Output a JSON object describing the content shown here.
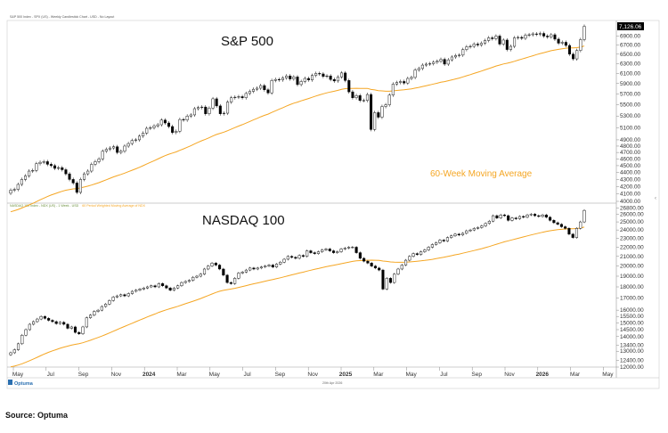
{
  "header": {
    "title": "S&P 500 Index - SPX (US) - Weekly Candlestick Chart - USD - No Layout"
  },
  "footer": {
    "date": "20th Apr 2026",
    "logo": "Optuma"
  },
  "source": "Source: Optuma",
  "colors": {
    "ma": "#f5a623",
    "candle_up_fill": "#ffffff",
    "candle_down_fill": "#000000",
    "candle_outline": "#000000",
    "axis": "#888888",
    "last_price_bg": "#000000",
    "last_price_text": "#ffffff"
  },
  "chart_data": [
    {
      "type": "candlestick",
      "title": "S&P 500",
      "header": "S&P 500 Index - SPX (US) - Weekly Candlestick Chart - USD - No Layout",
      "scale": "log",
      "ylim": [
        4000,
        7200
      ],
      "yticks": [
        4000,
        4100,
        4200,
        4300,
        4400,
        4500,
        4600,
        4700,
        4800,
        4900,
        5100,
        5300,
        5500,
        5700,
        5900,
        6100,
        6300,
        6500,
        6700,
        6900
      ],
      "ytick_labels": [
        "4000.00",
        "4100.00",
        "4200.00",
        "4300.00",
        "4400.00",
        "4500.00",
        "4600.00",
        "4700.00",
        "4800.00",
        "4900.00",
        "5100.00",
        "5300.00",
        "5500.00",
        "5700.00",
        "5900.00",
        "6100.00",
        "6300.00",
        "6500.00",
        "6700.00",
        "6900.00"
      ],
      "last_price": "7,126.06",
      "last_price_value": 7126.06,
      "annotation": "60-Week Moving Average",
      "closes": [
        4150,
        4160,
        4230,
        4300,
        4350,
        4420,
        4430,
        4530,
        4550,
        4560,
        4520,
        4500,
        4460,
        4470,
        4440,
        4380,
        4300,
        4250,
        4120,
        4300,
        4380,
        4420,
        4520,
        4560,
        4600,
        4720,
        4750,
        4770,
        4790,
        4700,
        4720,
        4800,
        4840,
        4890,
        4900,
        4960,
        5010,
        5090,
        5100,
        5130,
        5150,
        5230,
        5180,
        5120,
        5020,
        5040,
        5240,
        5230,
        5300,
        5320,
        5430,
        5450,
        5460,
        5340,
        5440,
        5610,
        5480,
        5340,
        5350,
        5550,
        5630,
        5640,
        5650,
        5630,
        5710,
        5750,
        5790,
        5810,
        5860,
        5780,
        5720,
        5960,
        5980,
        5970,
        6010,
        6050,
        5990,
        6030,
        5880,
        5940,
        6000,
        5970,
        6060,
        6100,
        6090,
        6040,
        6050,
        5980,
        5950,
        6030,
        6110,
        5960,
        5740,
        5630,
        5670,
        5580,
        5580,
        5690,
        5070,
        5360,
        5280,
        5470,
        5500,
        5680,
        5890,
        5920,
        5940,
        5910,
        6000,
        6020,
        6170,
        6200,
        6270,
        6290,
        6300,
        6330,
        6350,
        6390,
        6290,
        6380,
        6440,
        6470,
        6480,
        6600,
        6660,
        6670,
        6720,
        6700,
        6740,
        6800,
        6860,
        6840,
        6900,
        6720,
        6810,
        6600,
        6670,
        6860,
        6870,
        6850,
        6920,
        6930,
        6950,
        6940,
        6960,
        6900,
        6880,
        6930,
        6830,
        6740,
        6760,
        6690,
        6500,
        6400,
        6580,
        6820,
        7126
      ]
    },
    {
      "type": "candlestick",
      "title": "NASDAQ 100",
      "header": "NASDAQ 100 Index - NDX (US) - 1 Week - USD",
      "ma_header": "60 Period Weighted Moving Average of NDX",
      "scale": "log",
      "ylim": [
        12000,
        27000
      ],
      "yticks": [
        12000,
        12400,
        13000,
        13400,
        14000,
        14500,
        15000,
        15500,
        16000,
        17000,
        18000,
        19000,
        20000,
        21000,
        22000,
        23000,
        24000,
        25000,
        26000,
        26800
      ],
      "ytick_labels": [
        "12000.00",
        "12400.00",
        "13000.00",
        "13400.00",
        "14000.00",
        "14500.00",
        "15000.00",
        "15500.00",
        "16000.00",
        "17000.00",
        "18000.00",
        "19000.00",
        "20000.00",
        "21000.00",
        "22000.00",
        "23000.00",
        "24000.00",
        "25000.00",
        "26000.00",
        "26800.00"
      ],
      "annotation": "",
      "closes": [
        12900,
        13100,
        13500,
        14100,
        14500,
        14900,
        15100,
        15300,
        15500,
        15350,
        15200,
        15100,
        14950,
        15050,
        14900,
        14600,
        14700,
        14300,
        14200,
        14700,
        15400,
        15600,
        15900,
        16000,
        16300,
        16500,
        16800,
        17100,
        17200,
        17300,
        17200,
        17400,
        17600,
        17700,
        17800,
        17900,
        18000,
        18100,
        18000,
        18300,
        18100,
        17900,
        17700,
        17900,
        18100,
        18400,
        18500,
        18600,
        18900,
        19000,
        19200,
        19700,
        20000,
        20300,
        20100,
        19700,
        19100,
        18400,
        18300,
        18800,
        19300,
        19400,
        19600,
        19800,
        19700,
        19800,
        19900,
        20000,
        20100,
        19900,
        20200,
        20400,
        20700,
        21000,
        20900,
        20800,
        21100,
        21000,
        21600,
        21400,
        21300,
        21500,
        21700,
        21800,
        21600,
        21400,
        21500,
        21800,
        21900,
        22000,
        22000,
        21400,
        20800,
        20500,
        20300,
        20000,
        19800,
        19600,
        17800,
        18800,
        18400,
        19200,
        19700,
        20100,
        20600,
        21000,
        21300,
        21200,
        21500,
        21700,
        22000,
        22300,
        22500,
        22800,
        22700,
        23100,
        23300,
        23500,
        23400,
        23600,
        23900,
        24000,
        24200,
        24300,
        24500,
        24800,
        25100,
        25800,
        25500,
        25900,
        25800,
        25200,
        25500,
        25400,
        25700,
        25600,
        25900,
        26000,
        25800,
        25700,
        25900,
        25600,
        25200,
        24900,
        24700,
        24400,
        24200,
        23500,
        23100,
        24200,
        25000,
        26500
      ]
    }
  ],
  "x_axis": {
    "labels": [
      "May",
      "Jul",
      "Sep",
      "Nov",
      "2024",
      "Mar",
      "May",
      "Jul",
      "Sep",
      "Nov",
      "2025",
      "Mar",
      "May",
      "Jul",
      "Sep",
      "Nov",
      "2026",
      "Mar",
      "May"
    ],
    "bold": [
      "2024",
      "2025",
      "2026"
    ]
  }
}
